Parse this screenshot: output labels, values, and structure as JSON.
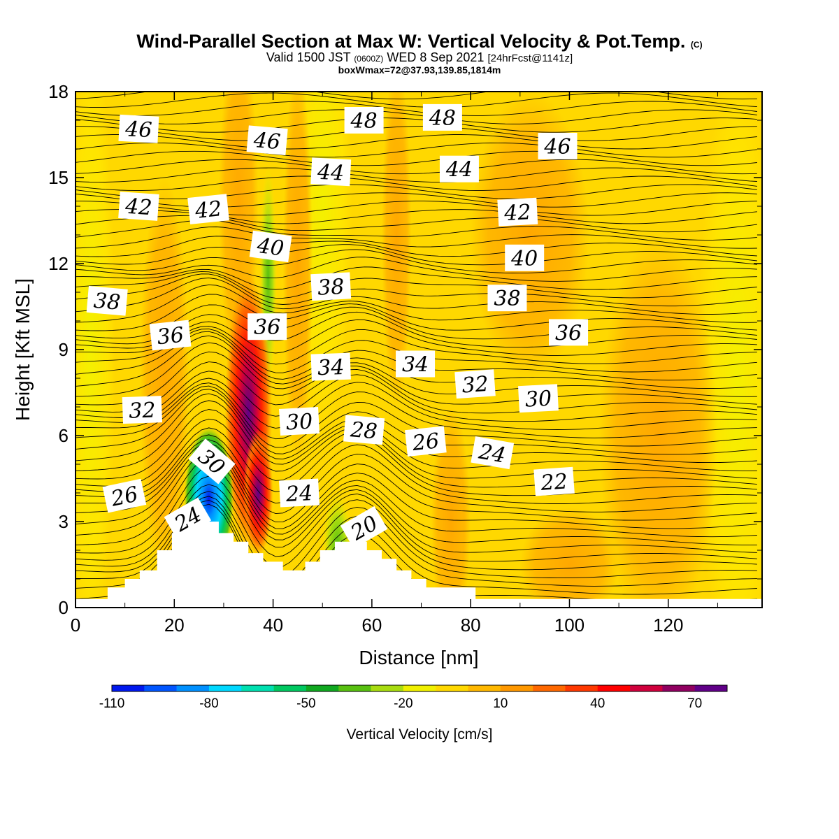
{
  "header": {
    "title": "Wind-Parallel Section at Max W: Vertical Velocity & Pot.Temp.",
    "title_mark": "(C)",
    "valid_prefix": "Valid 1500 JST",
    "valid_utc": "(0600Z)",
    "valid_date": "WED 8 Sep 2021",
    "forecast": "[24hrFcst@1141z]",
    "box_info": "boxWmax=72@37.93,139.85,1814m"
  },
  "chart_data": {
    "type": "contour",
    "xlabel": "Distance [nm]",
    "ylabel": "Height [Kft MSL]",
    "xlim": [
      0,
      139
    ],
    "ylim": [
      0,
      18
    ],
    "x_ticks": [
      0,
      20,
      40,
      60,
      80,
      100,
      120
    ],
    "y_ticks": [
      0,
      3,
      6,
      9,
      12,
      15,
      18
    ],
    "fill_variable": "Vertical Velocity [cm/s]",
    "colorbar": {
      "title": "Vertical Velocity [cm/s]",
      "tick_labels": [
        "-110",
        "-80",
        "-50",
        "-20",
        "10",
        "40",
        "70"
      ],
      "tick_values": [
        -110,
        -80,
        -50,
        -20,
        10,
        40,
        70
      ],
      "range": [
        -110,
        80
      ],
      "colors": [
        "#0018ee",
        "#0055ff",
        "#0090ff",
        "#00d8ff",
        "#00e0b0",
        "#00c860",
        "#10a820",
        "#58c010",
        "#a8dc10",
        "#f0f000",
        "#ffd800",
        "#ffb800",
        "#ff9800",
        "#ff6800",
        "#ff3800",
        "#ff0000",
        "#d0003c",
        "#900060",
        "#600088"
      ]
    },
    "isentrope_labels": [
      {
        "text": "46",
        "x": 12.8,
        "y": 16.7,
        "angle": 3
      },
      {
        "text": "46",
        "x": 38.8,
        "y": 16.3,
        "angle": 5
      },
      {
        "text": "48",
        "x": 58.4,
        "y": 17.0,
        "angle": 0
      },
      {
        "text": "48",
        "x": 74.3,
        "y": 17.1,
        "angle": 0
      },
      {
        "text": "44",
        "x": 51.7,
        "y": 15.2,
        "angle": 3
      },
      {
        "text": "44",
        "x": 77.7,
        "y": 15.3,
        "angle": 0
      },
      {
        "text": "46",
        "x": 97.6,
        "y": 16.1,
        "angle": 0
      },
      {
        "text": "42",
        "x": 12.8,
        "y": 14.0,
        "angle": 4
      },
      {
        "text": "42",
        "x": 26.9,
        "y": 13.9,
        "angle": -6
      },
      {
        "text": "42",
        "x": 89.5,
        "y": 13.8,
        "angle": -3
      },
      {
        "text": "40",
        "x": 39.5,
        "y": 12.6,
        "angle": 8
      },
      {
        "text": "40",
        "x": 90.9,
        "y": 12.2,
        "angle": 0
      },
      {
        "text": "38",
        "x": 6.4,
        "y": 10.7,
        "angle": 5
      },
      {
        "text": "38",
        "x": 51.7,
        "y": 11.2,
        "angle": -3
      },
      {
        "text": "38",
        "x": 87.4,
        "y": 10.8,
        "angle": 0
      },
      {
        "text": "36",
        "x": 19.2,
        "y": 9.5,
        "angle": -6
      },
      {
        "text": "36",
        "x": 38.8,
        "y": 9.8,
        "angle": 0
      },
      {
        "text": "36",
        "x": 99.8,
        "y": 9.6,
        "angle": 0
      },
      {
        "text": "34",
        "x": 51.7,
        "y": 8.4,
        "angle": -2
      },
      {
        "text": "34",
        "x": 68.8,
        "y": 8.5,
        "angle": 0
      },
      {
        "text": "32",
        "x": 13.5,
        "y": 6.9,
        "angle": -2
      },
      {
        "text": "32",
        "x": 80.9,
        "y": 7.8,
        "angle": -4
      },
      {
        "text": "30",
        "x": 45.3,
        "y": 6.5,
        "angle": -3
      },
      {
        "text": "30",
        "x": 93.7,
        "y": 7.3,
        "angle": -3
      },
      {
        "text": "30",
        "x": 27.6,
        "y": 5.1,
        "angle": 40
      },
      {
        "text": "28",
        "x": 58.4,
        "y": 6.2,
        "angle": 5
      },
      {
        "text": "26",
        "x": 70.9,
        "y": 5.8,
        "angle": -6
      },
      {
        "text": "24",
        "x": 84.4,
        "y": 5.4,
        "angle": 10
      },
      {
        "text": "26",
        "x": 9.9,
        "y": 3.9,
        "angle": -12
      },
      {
        "text": "24",
        "x": 45.3,
        "y": 4.0,
        "angle": -3
      },
      {
        "text": "22",
        "x": 96.9,
        "y": 4.4,
        "angle": -4
      },
      {
        "text": "24",
        "x": 22.7,
        "y": 3.1,
        "angle": -30
      },
      {
        "text": "20",
        "x": 58.4,
        "y": 2.8,
        "angle": -30
      }
    ]
  }
}
